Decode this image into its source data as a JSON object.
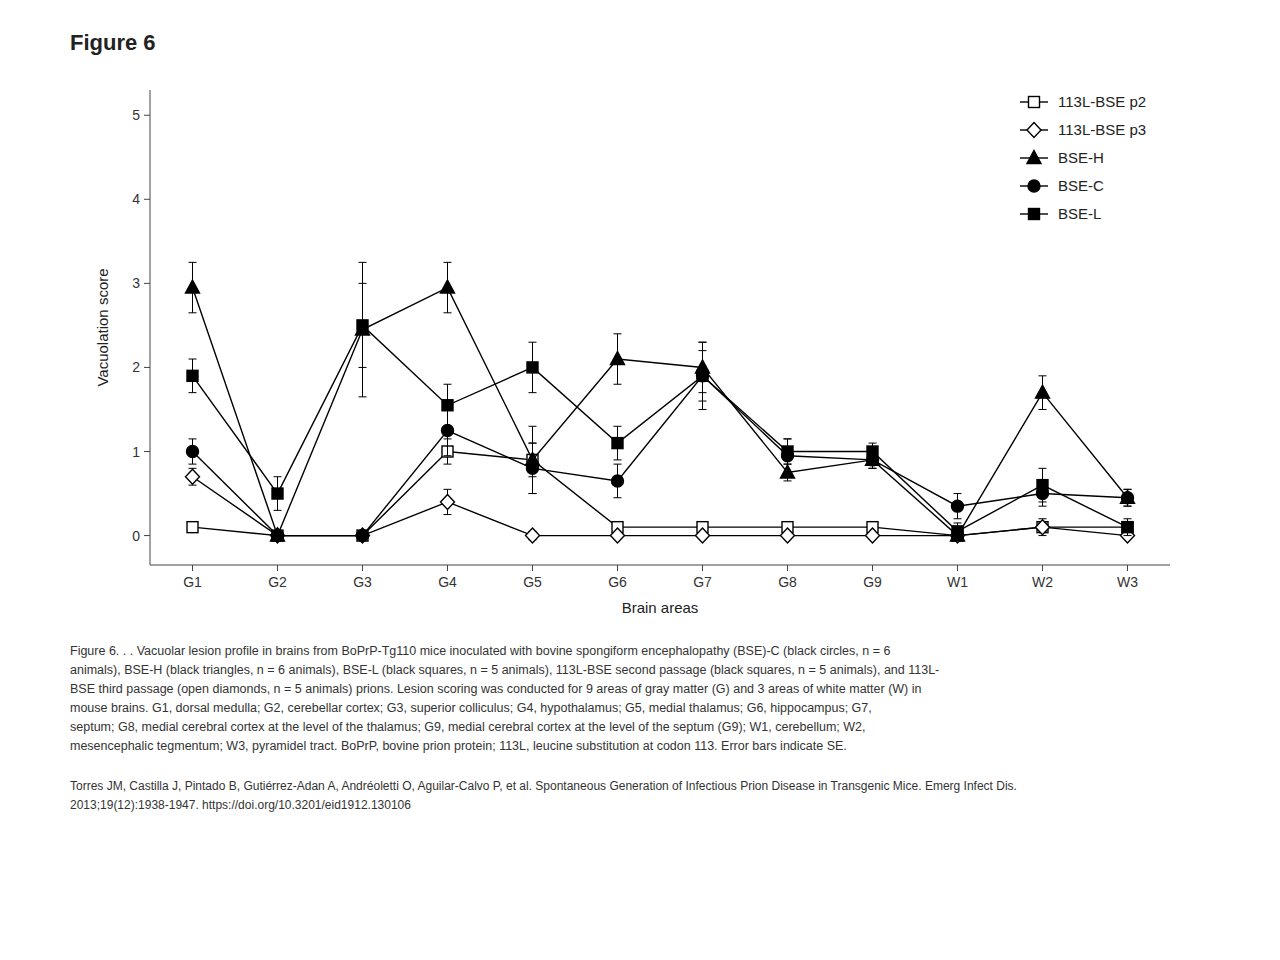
{
  "chart_data": {
    "type": "line",
    "title": "Figure 6",
    "xlabel": "Brain areas",
    "ylabel": "Vacuolation score",
    "categories": [
      "G1",
      "G2",
      "G3",
      "G4",
      "G5",
      "G6",
      "G7",
      "G8",
      "G9",
      "W1",
      "W2",
      "W3"
    ],
    "series": [
      {
        "name": "113L-BSE p2",
        "color": "black",
        "marker": "square-open",
        "values": [
          0.1,
          0.0,
          0.0,
          1.0,
          0.9,
          0.1,
          0.1,
          0.1,
          0.1,
          0.0,
          0.1,
          0.1
        ],
        "errors": [
          0.05,
          0.0,
          0.0,
          0.15,
          0.2,
          0.05,
          0.05,
          0.05,
          0.05,
          0.0,
          0.1,
          0.05
        ]
      },
      {
        "name": "113L-BSE p3",
        "color": "black",
        "marker": "diamond-open",
        "values": [
          0.7,
          0.0,
          0.0,
          0.4,
          0.0,
          0.0,
          0.0,
          0.0,
          0.0,
          0.0,
          0.1,
          0.0
        ],
        "errors": [
          0.1,
          0.0,
          0.0,
          0.15,
          0.05,
          0.0,
          0.0,
          0.0,
          0.0,
          0.0,
          0.05,
          0.0
        ]
      },
      {
        "name": "BSE-H",
        "color": "black",
        "marker": "triangle",
        "values": [
          2.95,
          0.0,
          2.45,
          2.95,
          0.9,
          2.1,
          2.0,
          0.75,
          0.9,
          0.0,
          1.7,
          0.45
        ],
        "errors": [
          0.3,
          0.05,
          0.8,
          0.3,
          0.4,
          0.3,
          0.3,
          0.1,
          0.1,
          0.0,
          0.2,
          0.1
        ]
      },
      {
        "name": "BSE-C",
        "color": "black",
        "marker": "circle",
        "values": [
          1.0,
          0.0,
          0.0,
          1.25,
          0.8,
          0.65,
          1.9,
          0.95,
          0.9,
          0.35,
          0.5,
          0.45
        ],
        "errors": [
          0.15,
          0.05,
          0.05,
          0.3,
          0.3,
          0.2,
          0.4,
          0.2,
          0.1,
          0.15,
          0.15,
          0.1
        ]
      },
      {
        "name": "BSE-L",
        "color": "black",
        "marker": "square",
        "values": [
          1.9,
          0.5,
          2.5,
          1.55,
          2.0,
          1.1,
          1.9,
          1.0,
          1.0,
          0.05,
          0.6,
          0.1
        ],
        "errors": [
          0.2,
          0.2,
          0.5,
          0.25,
          0.3,
          0.2,
          0.3,
          0.15,
          0.1,
          0.1,
          0.2,
          0.1
        ]
      }
    ],
    "ylim": [
      -0.35,
      5.3
    ],
    "yticks": [
      0,
      1,
      2,
      3,
      4,
      5
    ],
    "grid": false,
    "legend": "upper right",
    "annotations": [
      "Figure 6. . . Vacuolar lesion profile in brains from BoPrP-Tg110 mice inoculated with bovine spongiform encephalopathy (BSE)-C (black circles, n = 6",
      "animals), BSE-H (black triangles, n = 6 animals), BSE-L (black squares, n = 5 animals), 113L-BSE second passage (black squares, n = 5 animals), and 113L-",
      "BSE third passage (open diamonds, n = 5 animals) prions. Lesion scoring was conducted for 9 areas of gray matter (G) and 3 areas of white matter (W) in",
      "mouse brains. G1, dorsal medulla; G2, cerebellar cortex; G3, superior colliculus; G4, hypothalamus; G5, medial thalamus; G6, hippocampus; G7,",
      "septum; G8, medial cerebral cortex at the level of the thalamus; G9, medial cerebral cortex at the level of the septum (G9); W1, cerebellum; W2,",
      "mesencephalic tegmentum; W3, pyramidel tract. BoPrP, bovine prion protein; 113L, leucine substitution at codon 113. Error bars indicate SE.",
      "Torres JM, Castilla J, Pintado B, Gutiérrez-Adan A, Andréoletti O, Aguilar-Calvo P, et al. Spontaneous Generation of Infectious Prion Disease in Transgenic Mice. Emerg Infect Dis.",
      "2013;19(12):1938-1947. https://doi.org/10.3201/eid1912.130106"
    ]
  }
}
